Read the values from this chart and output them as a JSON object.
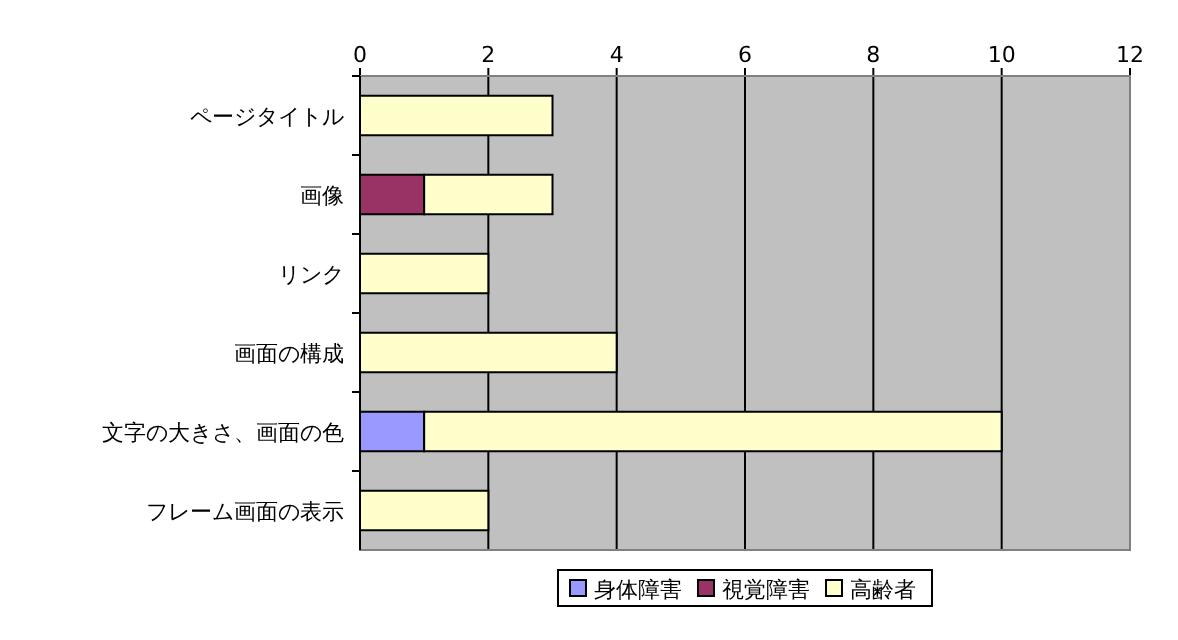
{
  "chart_data": {
    "type": "bar",
    "orientation": "horizontal",
    "stacked": true,
    "categories": [
      "ページタイトル",
      "画像",
      "リンク",
      "画面の構成",
      "文字の大きさ、画面の色",
      "フレーム画面の表示"
    ],
    "series": [
      {
        "name": "身体障害",
        "color": "#9999ff",
        "values": [
          0,
          0,
          0,
          0,
          1,
          0
        ]
      },
      {
        "name": "視覚障害",
        "color": "#993366",
        "values": [
          0,
          1,
          0,
          0,
          0,
          0
        ]
      },
      {
        "name": "高齢者",
        "color": "#ffffcc",
        "values": [
          3,
          2,
          2,
          4,
          9,
          2
        ]
      }
    ],
    "xlim": [
      0,
      12
    ],
    "xticks": [
      0,
      2,
      4,
      6,
      8,
      10,
      12
    ],
    "grid": "x",
    "legend": "bottom"
  }
}
